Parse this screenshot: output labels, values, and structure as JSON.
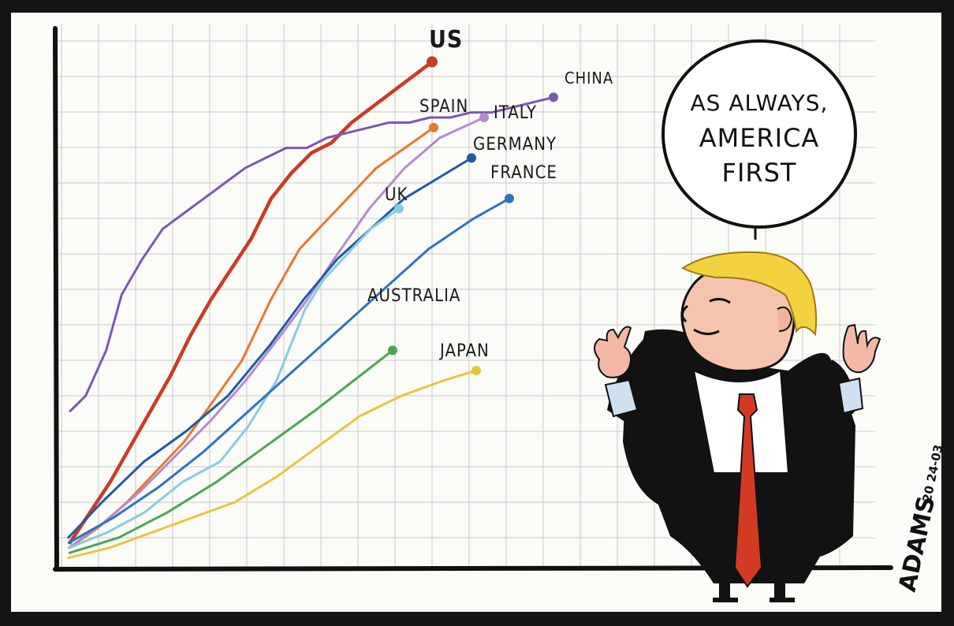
{
  "chart_data": {
    "type": "line",
    "title": "",
    "xlabel": "",
    "ylabel": "",
    "xlim": [
      0,
      1
    ],
    "ylim": [
      0,
      1
    ],
    "grid": true,
    "series": [
      {
        "name": "US",
        "color": "#cc3a23",
        "x": [
          0.02,
          0.06,
          0.1,
          0.14,
          0.18,
          0.22,
          0.26,
          0.3,
          0.34,
          0.38,
          0.42,
          0.46,
          0.5,
          0.54,
          0.58,
          0.62,
          0.66,
          0.7,
          0.74
        ],
        "y": [
          0.04,
          0.1,
          0.16,
          0.23,
          0.3,
          0.37,
          0.45,
          0.52,
          0.58,
          0.64,
          0.72,
          0.77,
          0.81,
          0.83,
          0.87,
          0.9,
          0.93,
          0.96,
          0.99
        ]
      },
      {
        "name": "CHINA",
        "color": "#7b58b3",
        "x": [
          0.02,
          0.05,
          0.09,
          0.12,
          0.16,
          0.2,
          0.24,
          0.28,
          0.32,
          0.36,
          0.4,
          0.44,
          0.48,
          0.52,
          0.56,
          0.6,
          0.64,
          0.68,
          0.72,
          0.76,
          0.8,
          0.84,
          0.88,
          0.92,
          0.96
        ],
        "y": [
          0.3,
          0.33,
          0.42,
          0.53,
          0.6,
          0.66,
          0.69,
          0.72,
          0.75,
          0.78,
          0.8,
          0.82,
          0.82,
          0.84,
          0.85,
          0.86,
          0.87,
          0.87,
          0.88,
          0.88,
          0.89,
          0.89,
          0.9,
          0.91,
          0.92
        ]
      },
      {
        "name": "SPAIN",
        "color": "#e9782c",
        "x": [
          0.02,
          0.08,
          0.14,
          0.2,
          0.26,
          0.32,
          0.38,
          0.44,
          0.5,
          0.56,
          0.6,
          0.66,
          0.72,
          0.78
        ],
        "y": [
          0.03,
          0.07,
          0.12,
          0.18,
          0.24,
          0.32,
          0.4,
          0.52,
          0.62,
          0.68,
          0.72,
          0.78,
          0.82,
          0.86
        ]
      },
      {
        "name": "ITALY",
        "color": "#b58bd1",
        "x": [
          0.02,
          0.1,
          0.18,
          0.26,
          0.34,
          0.42,
          0.5,
          0.56,
          0.62,
          0.7,
          0.78,
          0.86,
          0.96
        ],
        "y": [
          0.03,
          0.08,
          0.14,
          0.21,
          0.28,
          0.36,
          0.45,
          0.52,
          0.6,
          0.7,
          0.78,
          0.84,
          0.88
        ]
      },
      {
        "name": "GERMANY",
        "color": "#1f5aa6",
        "x": [
          0.02,
          0.1,
          0.2,
          0.3,
          0.4,
          0.5,
          0.58,
          0.66,
          0.74,
          0.82,
          0.9,
          0.98
        ],
        "y": [
          0.05,
          0.12,
          0.2,
          0.26,
          0.33,
          0.43,
          0.52,
          0.6,
          0.66,
          0.72,
          0.76,
          0.8
        ]
      },
      {
        "name": "UK",
        "color": "#86cde0",
        "x": [
          0.02,
          0.1,
          0.18,
          0.26,
          0.34,
          0.4,
          0.46,
          0.52,
          0.56,
          0.6,
          0.66,
          0.72
        ],
        "y": [
          0.03,
          0.06,
          0.1,
          0.16,
          0.2,
          0.27,
          0.36,
          0.5,
          0.56,
          0.6,
          0.66,
          0.7
        ]
      },
      {
        "name": "FRANCE",
        "color": "#2f72c1",
        "x": [
          0.02,
          0.12,
          0.22,
          0.32,
          0.42,
          0.52,
          0.62,
          0.72,
          0.82,
          0.92,
          1.0
        ],
        "y": [
          0.04,
          0.09,
          0.15,
          0.22,
          0.3,
          0.38,
          0.46,
          0.54,
          0.62,
          0.68,
          0.72
        ]
      },
      {
        "name": "AUSTRALIA",
        "color": "#4aa650",
        "x": [
          0.02,
          0.12,
          0.22,
          0.32,
          0.42,
          0.52,
          0.6,
          0.68
        ],
        "y": [
          0.02,
          0.05,
          0.1,
          0.16,
          0.23,
          0.3,
          0.36,
          0.42
        ]
      },
      {
        "name": "JAPAN",
        "color": "#e7c63a",
        "x": [
          0.02,
          0.12,
          0.22,
          0.32,
          0.42,
          0.52,
          0.62,
          0.72,
          0.82,
          0.92,
          1.0
        ],
        "y": [
          0.01,
          0.03,
          0.06,
          0.09,
          0.12,
          0.17,
          0.23,
          0.29,
          0.33,
          0.36,
          0.38
        ]
      }
    ]
  },
  "speech_bubble": {
    "lines": [
      "AS ALWAYS,",
      "AMERICA",
      "FIRST"
    ]
  },
  "signature": {
    "name": "ADAMS",
    "date": "20 24-03"
  }
}
